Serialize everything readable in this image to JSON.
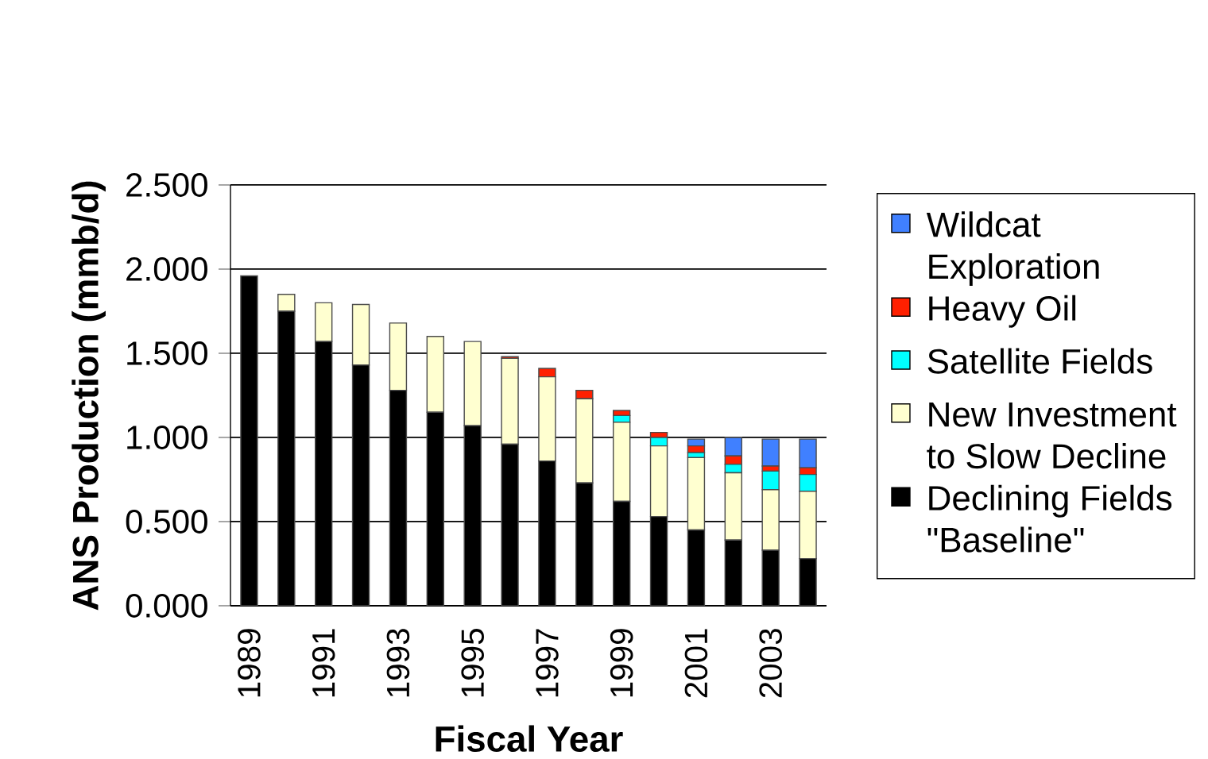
{
  "chart_data": {
    "type": "bar",
    "stacked": true,
    "xlabel": "Fiscal Year",
    "ylabel": "ANS Production (mmb/d)",
    "categories": [
      "1989",
      null,
      "1991",
      null,
      "1993",
      null,
      "1995",
      null,
      "1997",
      null,
      "1999",
      null,
      "2001",
      null,
      "2003",
      null
    ],
    "series": [
      {
        "name": "Declining Fields \"Baseline\"",
        "color": "#000000",
        "values": [
          1.96,
          1.75,
          1.57,
          1.43,
          1.28,
          1.15,
          1.07,
          0.96,
          0.86,
          0.73,
          0.62,
          0.53,
          0.45,
          0.39,
          0.33,
          0.28
        ]
      },
      {
        "name": "New Investment to Slow Decline",
        "color": "#ffffd0",
        "values": [
          null,
          0.1,
          0.23,
          0.36,
          0.4,
          0.45,
          0.5,
          0.51,
          0.5,
          0.5,
          0.47,
          0.42,
          0.43,
          0.4,
          0.36,
          0.4
        ]
      },
      {
        "name": "Satellite Fields",
        "color": "#00ffff",
        "values": [
          null,
          null,
          null,
          null,
          null,
          null,
          null,
          null,
          null,
          null,
          0.04,
          0.05,
          0.03,
          0.05,
          0.11,
          0.1
        ]
      },
      {
        "name": "Heavy Oil",
        "color": "#ff2000",
        "values": [
          null,
          null,
          null,
          null,
          null,
          null,
          null,
          0.01,
          0.05,
          0.05,
          0.03,
          0.03,
          0.04,
          0.05,
          0.03,
          0.04
        ]
      },
      {
        "name": "Wildcat Exploration",
        "color": "#4080ff",
        "values": [
          null,
          null,
          null,
          null,
          null,
          null,
          null,
          null,
          null,
          null,
          null,
          null,
          0.04,
          0.11,
          0.16,
          0.17
        ]
      }
    ],
    "ylim": [
      0,
      2.5
    ],
    "yticks": [
      {
        "value": 0,
        "label": "0.000"
      },
      {
        "value": 0.5,
        "label": "0.500"
      },
      {
        "value": 1.0,
        "label": "1.000"
      },
      {
        "value": 1.5,
        "label": "1.500"
      },
      {
        "value": 2.0,
        "label": "2.000"
      },
      {
        "value": 2.5,
        "label": "2.500"
      }
    ],
    "grid": "y",
    "legend": "right"
  }
}
